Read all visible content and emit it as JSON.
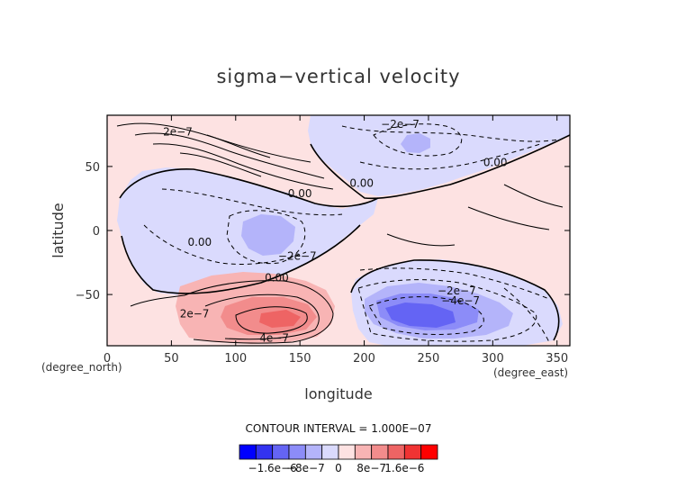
{
  "chart_data": {
    "type": "contour",
    "title": "sigma−vertical velocity",
    "xlabel": "longitude",
    "ylabel": "latitude",
    "x_unit": "(degree_east)",
    "y_unit": "(degree_north)",
    "xlim": [
      0,
      360
    ],
    "ylim": [
      -90,
      90
    ],
    "x_ticks": [
      0,
      50,
      100,
      150,
      200,
      250,
      300,
      350
    ],
    "y_ticks": [
      50,
      0,
      -50
    ],
    "x_tick_labels": [
      "0",
      "50",
      "100",
      "150",
      "200",
      "250",
      "300",
      "350"
    ],
    "y_tick_labels": [
      "50",
      "0",
      "−50"
    ],
    "contour_interval_text": "CONTOUR INTERVAL = 1.000E−07",
    "colorbar": {
      "colors": [
        "#0000ff",
        "#3333f0",
        "#6464f4",
        "#8c8cf8",
        "#b4b4fa",
        "#dadafd",
        "#fde2e2",
        "#f8b4b4",
        "#f28c8c",
        "#ee6464",
        "#f03333",
        "#ff0000"
      ],
      "labels": [
        {
          "text": "−1.6e−6",
          "value": -1.6e-06
        },
        {
          "text": "−8e−7",
          "value": -8e-07
        },
        {
          "text": "0",
          "value": 0
        },
        {
          "text": "8e−7",
          "value": 8e-07
        },
        {
          "text": "1.6e−6",
          "value": 1.6e-06
        }
      ]
    },
    "contour_labels": [
      {
        "text": "2e−7",
        "lon": 55,
        "lat": 77
      },
      {
        "text": "−2e−7",
        "lon": 228,
        "lat": 83
      },
      {
        "text": "0.00",
        "lon": 302,
        "lat": 53
      },
      {
        "text": "0.00",
        "lon": 198,
        "lat": 37
      },
      {
        "text": "0.00",
        "lon": 150,
        "lat": 29
      },
      {
        "text": "0.00",
        "lon": 72,
        "lat": -9
      },
      {
        "text": "−2e−7",
        "lon": 148,
        "lat": -20
      },
      {
        "text": "0.00",
        "lon": 132,
        "lat": -37
      },
      {
        "text": "−2e−7",
        "lon": 272,
        "lat": -47
      },
      {
        "text": "−4e−7",
        "lon": 275,
        "lat": -55
      },
      {
        "text": "2e−7",
        "lon": 68,
        "lat": -65
      },
      {
        "text": "4e−7",
        "lon": 130,
        "lat": -84
      }
    ],
    "regions": [
      {
        "name": "north-central-descent",
        "sign": "negative",
        "lon_range": [
          170,
          340
        ],
        "lat_range": [
          30,
          90
        ]
      },
      {
        "name": "tropical-west-descent",
        "sign": "negative",
        "lon_range": [
          20,
          210
        ],
        "lat_range": [
          -45,
          55
        ]
      },
      {
        "name": "tropical-center-min",
        "sign": "negative",
        "lon_range": [
          110,
          145
        ],
        "lat_range": [
          -18,
          8
        ],
        "level": -4e-07
      },
      {
        "name": "northern-patch-min",
        "sign": "negative",
        "lon_range": [
          228,
          252
        ],
        "lat_range": [
          62,
          77
        ],
        "level": -4e-07
      },
      {
        "name": "southern-descent",
        "sign": "negative",
        "lon_range": [
          190,
          350
        ],
        "lat_range": [
          -90,
          -30
        ]
      },
      {
        "name": "southern-strong-min",
        "sign": "negative",
        "lon_range": [
          210,
          290
        ],
        "lat_range": [
          -80,
          -45
        ],
        "level": -1.2e-06
      },
      {
        "name": "southern-ascent-max",
        "sign": "positive",
        "lon_range": [
          55,
          175
        ],
        "lat_range": [
          -85,
          -35
        ],
        "level": 6e-07
      }
    ]
  }
}
